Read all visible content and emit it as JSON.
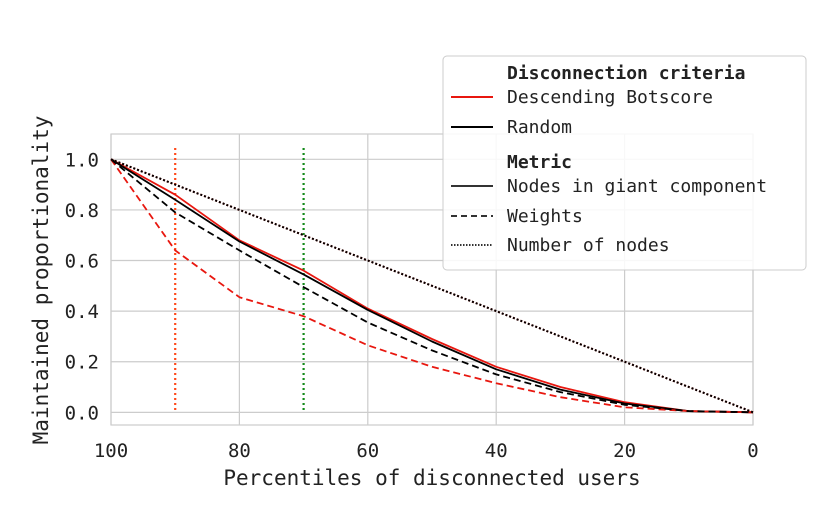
{
  "chart_data": {
    "type": "line",
    "title": "",
    "xlabel": "Percentiles of disconnected users",
    "ylabel": "Maintained proportionality",
    "xlim": [
      100,
      0
    ],
    "ylim": [
      -0.05,
      1.1
    ],
    "x_ticks": [
      100,
      80,
      60,
      40,
      20,
      0
    ],
    "y_ticks": [
      0.0,
      0.2,
      0.4,
      0.6,
      0.8,
      1.0
    ],
    "x_tick_labels": [
      "100",
      "80",
      "60",
      "40",
      "20",
      "0"
    ],
    "y_tick_labels": [
      "0.0",
      "0.2",
      "0.4",
      "0.6",
      "0.8",
      "1.0"
    ],
    "grid": true,
    "legend_position": "top-right",
    "x": [
      100,
      90,
      80,
      70,
      60,
      50,
      40,
      30,
      20,
      10,
      0
    ],
    "series": [
      {
        "name": "Descending Botscore - Nodes in giant component",
        "criteria": "Descending Botscore",
        "metric": "Nodes in giant component",
        "color": "#e8170f",
        "style": "solid",
        "values": [
          1.0,
          0.86,
          0.68,
          0.56,
          0.41,
          0.29,
          0.18,
          0.1,
          0.04,
          0.005,
          0.0
        ]
      },
      {
        "name": "Random - Nodes in giant component",
        "criteria": "Random",
        "metric": "Nodes in giant component",
        "color": "#000000",
        "style": "solid",
        "values": [
          1.0,
          0.84,
          0.675,
          0.545,
          0.405,
          0.28,
          0.17,
          0.09,
          0.035,
          0.005,
          0.0
        ]
      },
      {
        "name": "Descending Botscore - Weights",
        "criteria": "Descending Botscore",
        "metric": "Weights",
        "color": "#e8170f",
        "style": "dashed",
        "values": [
          1.0,
          0.64,
          0.455,
          0.38,
          0.265,
          0.18,
          0.115,
          0.06,
          0.02,
          0.005,
          0.0
        ]
      },
      {
        "name": "Random - Weights",
        "criteria": "Random",
        "metric": "Weights",
        "color": "#000000",
        "style": "dashed",
        "values": [
          1.0,
          0.79,
          0.64,
          0.495,
          0.355,
          0.245,
          0.15,
          0.08,
          0.03,
          0.005,
          0.0
        ]
      },
      {
        "name": "Descending Botscore - Number of nodes",
        "criteria": "Descending Botscore",
        "metric": "Number of nodes",
        "color": "#e8170f",
        "style": "dotted",
        "values": [
          1.0,
          0.9,
          0.8,
          0.7,
          0.6,
          0.5,
          0.4,
          0.3,
          0.2,
          0.1,
          0.0
        ]
      },
      {
        "name": "Random - Number of nodes",
        "criteria": "Random",
        "metric": "Number of nodes",
        "color": "#000000",
        "style": "dotted",
        "values": [
          1.0,
          0.9,
          0.8,
          0.7,
          0.6,
          0.5,
          0.4,
          0.3,
          0.2,
          0.1,
          0.0
        ]
      }
    ],
    "vertical_lines": [
      {
        "x": 90,
        "color": "#ff4a1c",
        "style": "dotted"
      },
      {
        "x": 70,
        "color": "#138a1a",
        "style": "dotted"
      }
    ],
    "legend": {
      "criteria_title": "Disconnection criteria",
      "metric_title": "Metric",
      "entries": [
        {
          "label": "Descending Botscore",
          "color": "#e8170f",
          "style": "solid",
          "group": "criteria"
        },
        {
          "label": "Random",
          "color": "#000000",
          "style": "solid",
          "group": "criteria"
        },
        {
          "label": "Nodes in giant component",
          "color": "#333333",
          "style": "solid",
          "group": "metric"
        },
        {
          "label": "Weights",
          "color": "#333333",
          "style": "dashed",
          "group": "metric"
        },
        {
          "label": "Number of nodes",
          "color": "#333333",
          "style": "dotted",
          "group": "metric"
        }
      ]
    }
  }
}
